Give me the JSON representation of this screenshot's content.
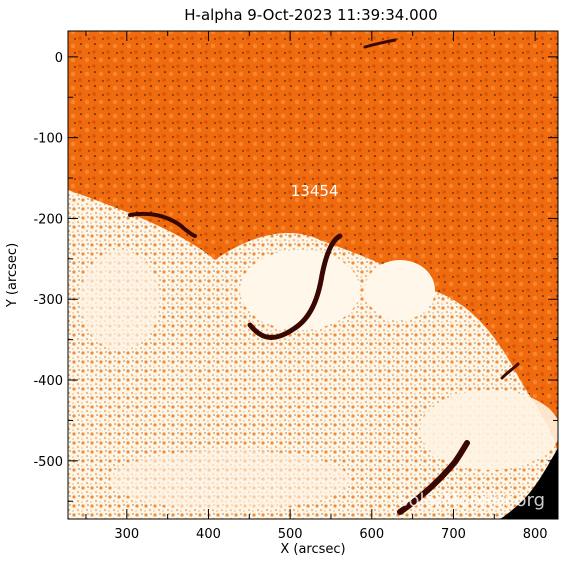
{
  "title": "H-alpha   9-Oct-2023 11:39:34.000",
  "watermark": "SolarMonitor.org",
  "active_region": {
    "label": "13454",
    "x": 530,
    "y": -166
  },
  "chart_data": {
    "type": "heatmap",
    "title": "H-alpha   9-Oct-2023 11:39:34.000",
    "xlabel": "X (arcsec)",
    "ylabel": "Y (arcsec)",
    "xlim": [
      228,
      828
    ],
    "ylim": [
      -572,
      32
    ],
    "x_ticks": [
      300,
      400,
      500,
      600,
      700,
      800
    ],
    "y_ticks": [
      0,
      -100,
      -200,
      -300,
      -400,
      -500
    ],
    "grid": false,
    "colors": {
      "chromosphere": "#f06a0e",
      "bright_plage": "#fff8ea",
      "filament": "#3a0800",
      "off_limb": "#000000"
    }
  }
}
